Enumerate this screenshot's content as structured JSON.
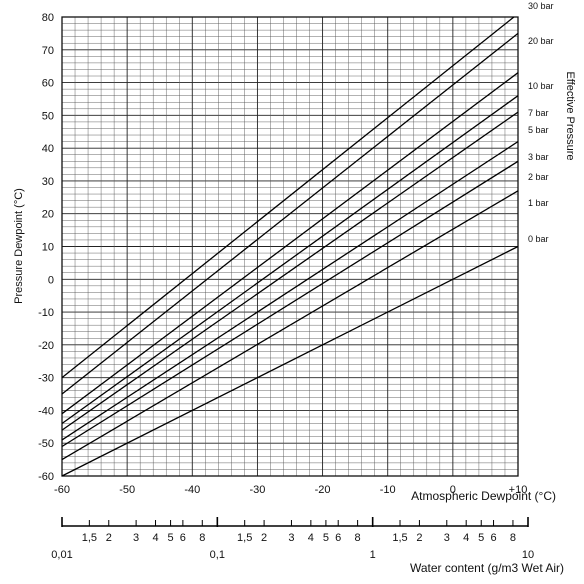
{
  "chart_data": {
    "type": "line",
    "title": "",
    "ylabel": "Pressure Dewpoint (°C)",
    "xlabel": "Atmospheric Dewpoint (°C)",
    "right_label": "Effective Pressure",
    "secondary_xlabel": "Water content (g/m3 Wet Air)",
    "xlim": [
      -60,
      10
    ],
    "ylim": [
      -60,
      80
    ],
    "grid": true,
    "x_ticks": [
      "-60",
      "-50",
      "-40",
      "-30",
      "-20",
      "-10",
      "0",
      "+10"
    ],
    "y_ticks": [
      "80",
      "70",
      "60",
      "50",
      "40",
      "30",
      "20",
      "10",
      "0",
      "-10",
      "-20",
      "-30",
      "-40",
      "-50",
      "-60"
    ],
    "series": [
      {
        "name": "0 bar",
        "x": [
          -60,
          10
        ],
        "y": [
          -60,
          10
        ]
      },
      {
        "name": "1 bar",
        "x": [
          -60,
          10
        ],
        "y": [
          -55,
          27
        ]
      },
      {
        "name": "2 bar",
        "x": [
          -60,
          10
        ],
        "y": [
          -51,
          36
        ]
      },
      {
        "name": "3 bar",
        "x": [
          -60,
          10
        ],
        "y": [
          -49,
          42
        ]
      },
      {
        "name": "5 bar",
        "x": [
          -60,
          10
        ],
        "y": [
          -46,
          51
        ]
      },
      {
        "name": "7 bar",
        "x": [
          -60,
          10
        ],
        "y": [
          -44,
          56
        ]
      },
      {
        "name": "10 bar",
        "x": [
          -60,
          10
        ],
        "y": [
          -41,
          63
        ]
      },
      {
        "name": "20 bar",
        "x": [
          -60,
          10
        ],
        "y": [
          -35,
          75
        ]
      },
      {
        "name": "30 bar",
        "x": [
          -60,
          10
        ],
        "y": [
          -30,
          81
        ]
      }
    ],
    "pressure_labels": [
      "30 bar",
      "20 bar",
      "10 bar",
      "7 bar",
      "5 bar",
      "3 bar",
      "2 bar",
      "1 bar",
      "0 bar"
    ],
    "water_scale": {
      "decade_labels": [
        "0,01",
        "0,1",
        "1",
        "10"
      ],
      "minor_labels": [
        "1,5",
        "2",
        "3",
        "4",
        "5",
        "6",
        "8"
      ]
    }
  }
}
